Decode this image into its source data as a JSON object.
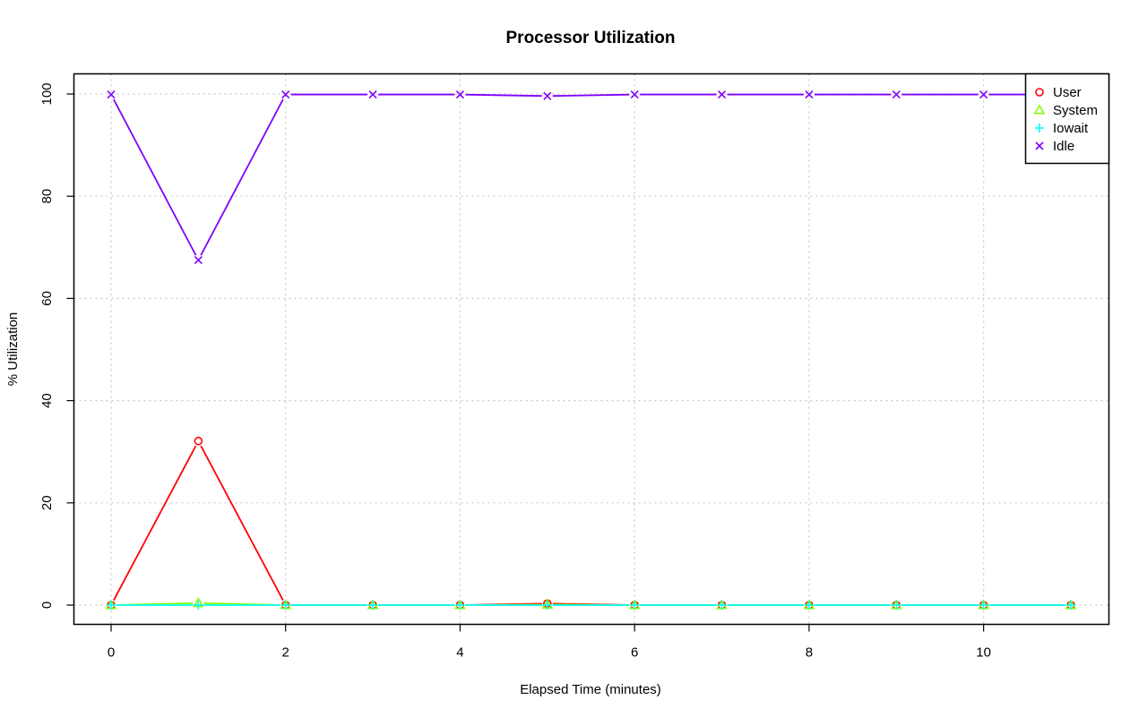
{
  "chart_data": {
    "type": "line",
    "title": "Processor Utilization",
    "xlabel": "Elapsed Time (minutes)",
    "ylabel": "% Utilization",
    "xlim": [
      0,
      11
    ],
    "ylim": [
      0,
      100
    ],
    "x": [
      0,
      1,
      2,
      3,
      4,
      5,
      6,
      7,
      8,
      9,
      10,
      11
    ],
    "x_ticks": [
      0,
      2,
      4,
      6,
      8,
      10
    ],
    "y_ticks": [
      0,
      20,
      40,
      60,
      80,
      100
    ],
    "x_tick_labels": [
      "0",
      "2",
      "4",
      "6",
      "8",
      "10"
    ],
    "y_tick_labels": [
      "0",
      "20",
      "40",
      "60",
      "80",
      "100"
    ],
    "grid": true,
    "legend_position": "top-right",
    "series": [
      {
        "name": "User",
        "color": "#ff0000",
        "marker": "circle",
        "values": [
          0,
          32.1,
          0,
          0,
          0,
          0.3,
          0,
          0,
          0,
          0,
          0,
          0
        ]
      },
      {
        "name": "System",
        "color": "#80ff00",
        "marker": "triangle",
        "values": [
          0,
          0.4,
          0,
          0,
          0,
          0.1,
          0,
          0,
          0,
          0,
          0,
          0
        ]
      },
      {
        "name": "Iowait",
        "color": "#00ffff",
        "marker": "plus",
        "values": [
          0,
          0,
          0,
          0,
          0,
          0,
          0,
          0,
          0,
          0,
          0,
          0
        ]
      },
      {
        "name": "Idle",
        "color": "#8000ff",
        "marker": "cross",
        "values": [
          99.9,
          67.5,
          99.9,
          99.9,
          99.9,
          99.6,
          99.9,
          99.9,
          99.9,
          99.9,
          99.9,
          99.9
        ]
      }
    ]
  }
}
